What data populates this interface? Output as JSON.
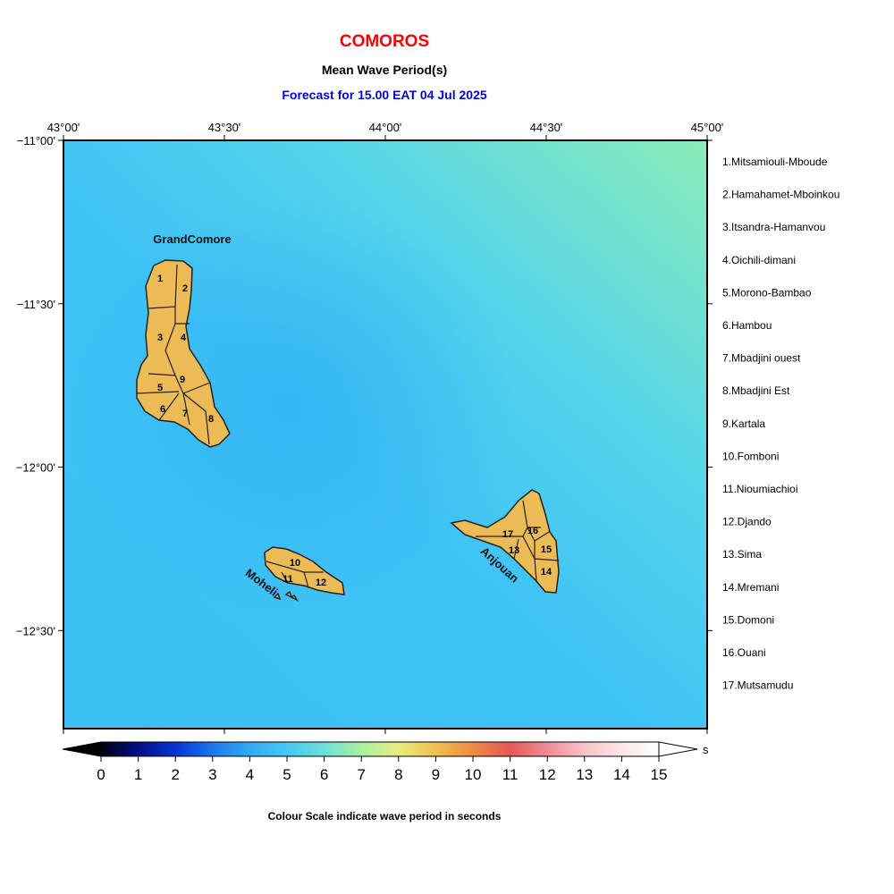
{
  "header": {
    "title": "COMOROS",
    "subtitle": "Mean Wave Period(s)",
    "forecast": "Forecast for  15.00 EAT 04 Jul 2025"
  },
  "map": {
    "lonlim": [
      43,
      45
    ],
    "latlim": [
      -11,
      -12.8
    ],
    "lon_ticks": [
      {
        "value": 43,
        "label": "43°00'"
      },
      {
        "value": 43.5,
        "label": "43°30'"
      },
      {
        "value": 44,
        "label": "44°00'"
      },
      {
        "value": 44.5,
        "label": "44°30'"
      },
      {
        "value": 45,
        "label": "45°00'"
      }
    ],
    "lat_ticks": [
      {
        "value": -11,
        "label": "−11°00'"
      },
      {
        "value": -11.5,
        "label": "−11°30'"
      },
      {
        "value": -12,
        "label": "−12°00'"
      },
      {
        "value": -12.5,
        "label": "−12°30'"
      }
    ],
    "islands": [
      "GrandComore",
      "Moheli",
      "Anjouan"
    ],
    "region_numbers": [
      "1",
      "2",
      "3",
      "4",
      "5",
      "6",
      "7",
      "8",
      "9",
      "10",
      "11",
      "12",
      "13",
      "14",
      "15",
      "16",
      "17"
    ]
  },
  "legend": [
    "1.Mitsamiouli-Mboude",
    "2.Hamahamet-Mboinkou",
    "3.Itsandra-Hamanvou",
    "4.Oichili-dimani",
    "5.Morono-Bambao",
    "6.Hambou",
    "7.Mbadjini ouest",
    "8.Mbadjini Est",
    "9.Kartala",
    "10.Fomboni",
    "11.Nioumiachioi",
    "12.Djando",
    "13.Sima",
    "14.Mremani",
    "15.Domoni",
    "16.Ouani",
    "17.Mutsamudu"
  ],
  "colorbar": {
    "min": 0,
    "max": 15,
    "ticks": [
      0,
      1,
      2,
      3,
      4,
      5,
      6,
      7,
      8,
      9,
      10,
      11,
      12,
      13,
      14,
      15
    ],
    "unit": "s",
    "caption": "Colour Scale indicate wave period in seconds"
  }
}
